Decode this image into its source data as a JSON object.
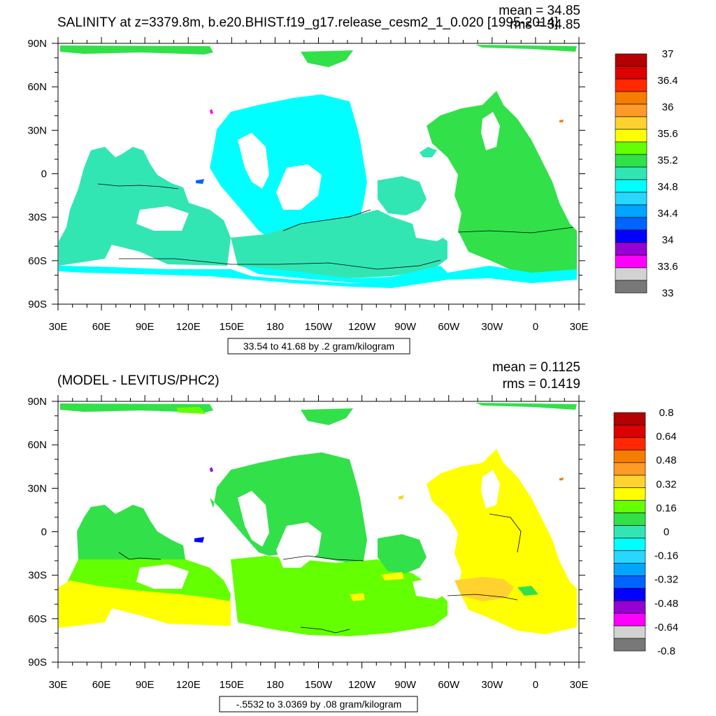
{
  "chart_data": [
    {
      "type": "heatmap",
      "title": "SALINITY at z=3379.8m, b.e20.BHIST.f19_g17.release_cesm2_1_0.020 [1995-2014]",
      "stats": [
        "mean = 34.85",
        "rms = 34.85"
      ],
      "x_ticks": [
        "30E",
        "60E",
        "90E",
        "120E",
        "150E",
        "180",
        "150W",
        "120W",
        "90W",
        "60W",
        "30W",
        "0",
        "30E"
      ],
      "y_ticks": [
        "90N",
        "60N",
        "30N",
        "0",
        "30S",
        "60S",
        "90S"
      ],
      "range_label": "33.54 to 41.68 by .2 gram/kilogram",
      "colorbar": {
        "labels": [
          "37",
          "36.4",
          "36",
          "35.6",
          "35.2",
          "34.8",
          "34.4",
          "34",
          "33.6",
          "33"
        ],
        "colors": [
          "#b40000",
          "#dc0000",
          "#ff2800",
          "#f57d00",
          "#ff9a28",
          "#ffd230",
          "#ffff00",
          "#64ff00",
          "#32e04a",
          "#32e6b4",
          "#00ffff",
          "#28d7ff",
          "#00a5ff",
          "#0064ff",
          "#0000ff",
          "#9600d2",
          "#ff00ff",
          "#d2d2d2",
          "#787878"
        ]
      },
      "field": {
        "dominant_values": [
          "34.8-35.0 (cyan) Pacific, Indian, Southern Ocean",
          "35.0-35.2 (green) Atlantic"
        ]
      }
    },
    {
      "type": "heatmap",
      "title": "(MODEL - LEVITUS/PHC2)",
      "stats": [
        "mean = 0.1125",
        "rms = 0.1419"
      ],
      "x_ticks": [
        "30E",
        "60E",
        "90E",
        "120E",
        "150E",
        "180",
        "150W",
        "120W",
        "90W",
        "60W",
        "30W",
        "0",
        "30E"
      ],
      "y_ticks": [
        "90N",
        "60N",
        "30N",
        "0",
        "30S",
        "60S",
        "90S"
      ],
      "range_label": "-.5532 to 3.0369 by .08 gram/kilogram",
      "colorbar": {
        "labels": [
          "0.8",
          "0.64",
          "0.48",
          "0.32",
          "0.16",
          "0",
          "-0.16",
          "-0.32",
          "-0.48",
          "-0.64",
          "-0.8"
        ],
        "colors": [
          "#b40000",
          "#dc0000",
          "#ff2800",
          "#f57d00",
          "#ff9a28",
          "#ffd230",
          "#ffff00",
          "#64ff00",
          "#32e04a",
          "#32e6b4",
          "#00ffff",
          "#28d7ff",
          "#00a5ff",
          "#0064ff",
          "#0000ff",
          "#9600d2",
          "#ff00ff",
          "#d2d2d2",
          "#787878"
        ]
      },
      "field": {
        "dominant_values": [
          "0.0-0.08 (green) Pacific north",
          "0.08-0.16 (light green) south",
          "0.16-0.24 (yellow) Atlantic",
          "0.24-0.32 (orange) South Atlantic patch"
        ]
      }
    }
  ]
}
